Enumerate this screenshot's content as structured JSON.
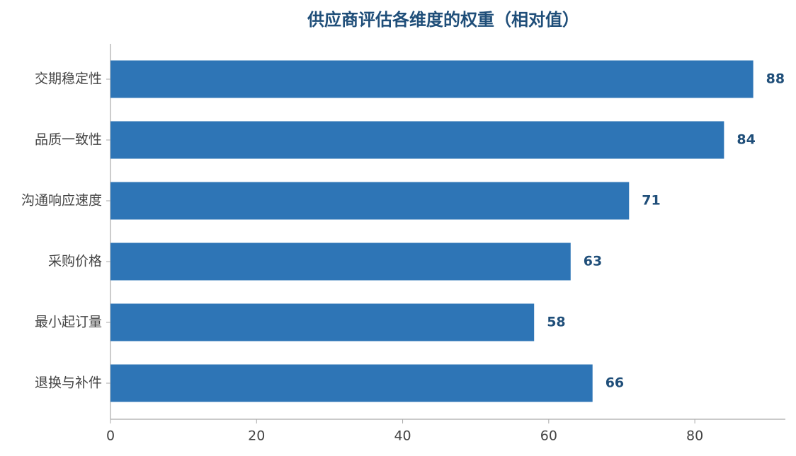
{
  "chart_data": {
    "type": "barh",
    "title": "供应商评估各维度的权重（相对值）",
    "categories": [
      "交期稳定性",
      "品质一致性",
      "沟通响应速度",
      "采购价格",
      "最小起订量",
      "退换与补件"
    ],
    "values": [
      88,
      84,
      71,
      63,
      58,
      66
    ],
    "color": "#2e75b6",
    "label_color": "#1f4e79",
    "xlim": [
      0,
      92.4
    ],
    "xticks": [
      0,
      20,
      40,
      60,
      80
    ],
    "grid": false
  }
}
